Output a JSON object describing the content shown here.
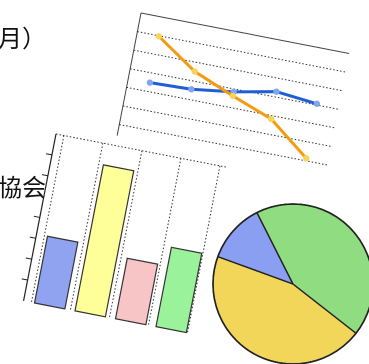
{
  "clipped_text": {
    "line1": "月）",
    "line2": "協会）"
  },
  "chart_data": [
    {
      "type": "line",
      "x": [
        1,
        2,
        3,
        4,
        5
      ],
      "series": [
        {
          "color": "#1f5fd6",
          "marker_color": "#7fa6ee",
          "values": [
            4.2,
            4.3,
            4.7,
            5.3,
            5.0
          ]
        },
        {
          "color": "#f39c12",
          "marker_color": "#f4d35e",
          "values": [
            7.6,
            5.6,
            4.4,
            3.3,
            1.0
          ]
        }
      ],
      "ylim": [
        0,
        9
      ],
      "grid": true
    },
    {
      "type": "bar",
      "categories": [
        "1",
        "2",
        "3",
        "4"
      ],
      "values": [
        3.2,
        7.0,
        2.9,
        3.8
      ],
      "colors": [
        "#8fa3f0",
        "#ffff99",
        "#f7c5c5",
        "#9af29a"
      ],
      "ylim": [
        0,
        8
      ],
      "grid": true
    },
    {
      "type": "pie",
      "values": [
        45,
        12,
        43
      ],
      "colors": [
        "#f2d65a",
        "#8a9ef2",
        "#90dc80"
      ]
    }
  ]
}
